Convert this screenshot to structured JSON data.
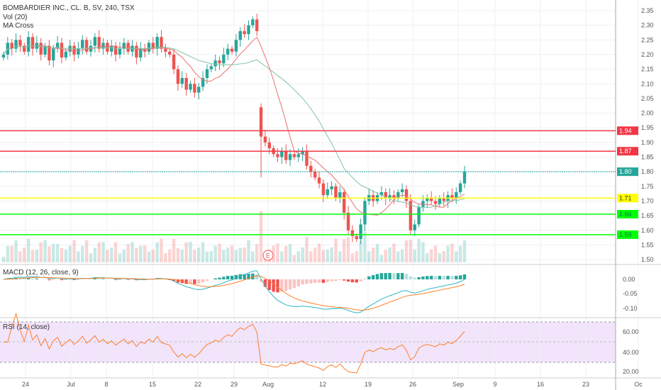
{
  "header": {
    "title": "BOMBARDIER INC., CL. B, SV, 240, TSX",
    "vol": "Vol (20)",
    "ma": "MA Cross"
  },
  "macd": {
    "title": "MACD (12, 26, close, 9)",
    "ticks": [
      "0.00",
      "-0.05",
      "-0.10"
    ]
  },
  "rsi": {
    "title": "RSI (14, close)",
    "ticks": [
      "60.00",
      "40.00",
      "20.00"
    ]
  },
  "price_ticks": [
    "2.35",
    "2.30",
    "2.25",
    "2.20",
    "2.15",
    "2.10",
    "2.05",
    "2.00",
    "1.95",
    "1.90",
    "1.85",
    "1.80",
    "1.75",
    "1.70",
    "1.65",
    "1.60",
    "1.55",
    "1.50"
  ],
  "levels": [
    {
      "price": 1.94,
      "label": "1.94",
      "color": "#f23645"
    },
    {
      "price": 1.87,
      "label": "1.87",
      "color": "#f23645"
    },
    {
      "price": 1.8,
      "label": "1.80",
      "color": "#26a69a"
    },
    {
      "price": 1.71,
      "label": "1.71",
      "color": "#ffff00"
    },
    {
      "price": 1.655,
      "label": "1.66",
      "color": "#00ff00"
    },
    {
      "price": 1.585,
      "label": "1.59",
      "color": "#00ff00"
    }
  ],
  "earnings_marker": "E",
  "time_ticks": [
    "24",
    "Jul",
    "8",
    "15",
    "22",
    "29",
    "Aug",
    "12",
    "19",
    "26",
    "Sep",
    "9",
    "16",
    "23",
    "Oc"
  ],
  "colors": {
    "up": "#26a69a",
    "down": "#ef5350",
    "ma_fast": "#f06e6e",
    "ma_slow": "#7fc4a8",
    "macd": "#2db7c4",
    "signal": "#ff7f2a",
    "rsi": "#ff7f2a",
    "rsi_band": "#f1e4fb"
  },
  "closes": [
    2.2,
    2.24,
    2.22,
    2.25,
    2.23,
    2.21,
    2.26,
    2.22,
    2.24,
    2.2,
    2.23,
    2.18,
    2.22,
    2.24,
    2.19,
    2.21,
    2.23,
    2.2,
    2.22,
    2.25,
    2.21,
    2.23,
    2.26,
    2.22,
    2.24,
    2.21,
    2.23,
    2.2,
    2.22,
    2.24,
    2.21,
    2.23,
    2.19,
    2.22,
    2.21,
    2.24,
    2.22,
    2.26,
    2.22,
    2.21,
    2.2,
    2.15,
    2.1,
    2.12,
    2.08,
    2.1,
    2.07,
    2.09,
    2.12,
    2.15,
    2.16,
    2.18,
    2.17,
    2.2,
    2.22,
    2.21,
    2.25,
    2.28,
    2.27,
    2.3,
    2.32,
    2.28,
    1.92,
    1.9,
    1.88,
    1.86,
    1.85,
    1.87,
    1.84,
    1.86,
    1.85,
    1.86,
    1.87,
    1.82,
    1.8,
    1.78,
    1.76,
    1.72,
    1.74,
    1.75,
    1.71,
    1.73,
    1.66,
    1.6,
    1.58,
    1.57,
    1.62,
    1.7,
    1.72,
    1.7,
    1.72,
    1.73,
    1.71,
    1.72,
    1.71,
    1.73,
    1.74,
    1.7,
    1.6,
    1.62,
    1.68,
    1.7,
    1.71,
    1.7,
    1.69,
    1.71,
    1.7,
    1.72,
    1.71,
    1.73,
    1.76,
    1.8
  ]
}
